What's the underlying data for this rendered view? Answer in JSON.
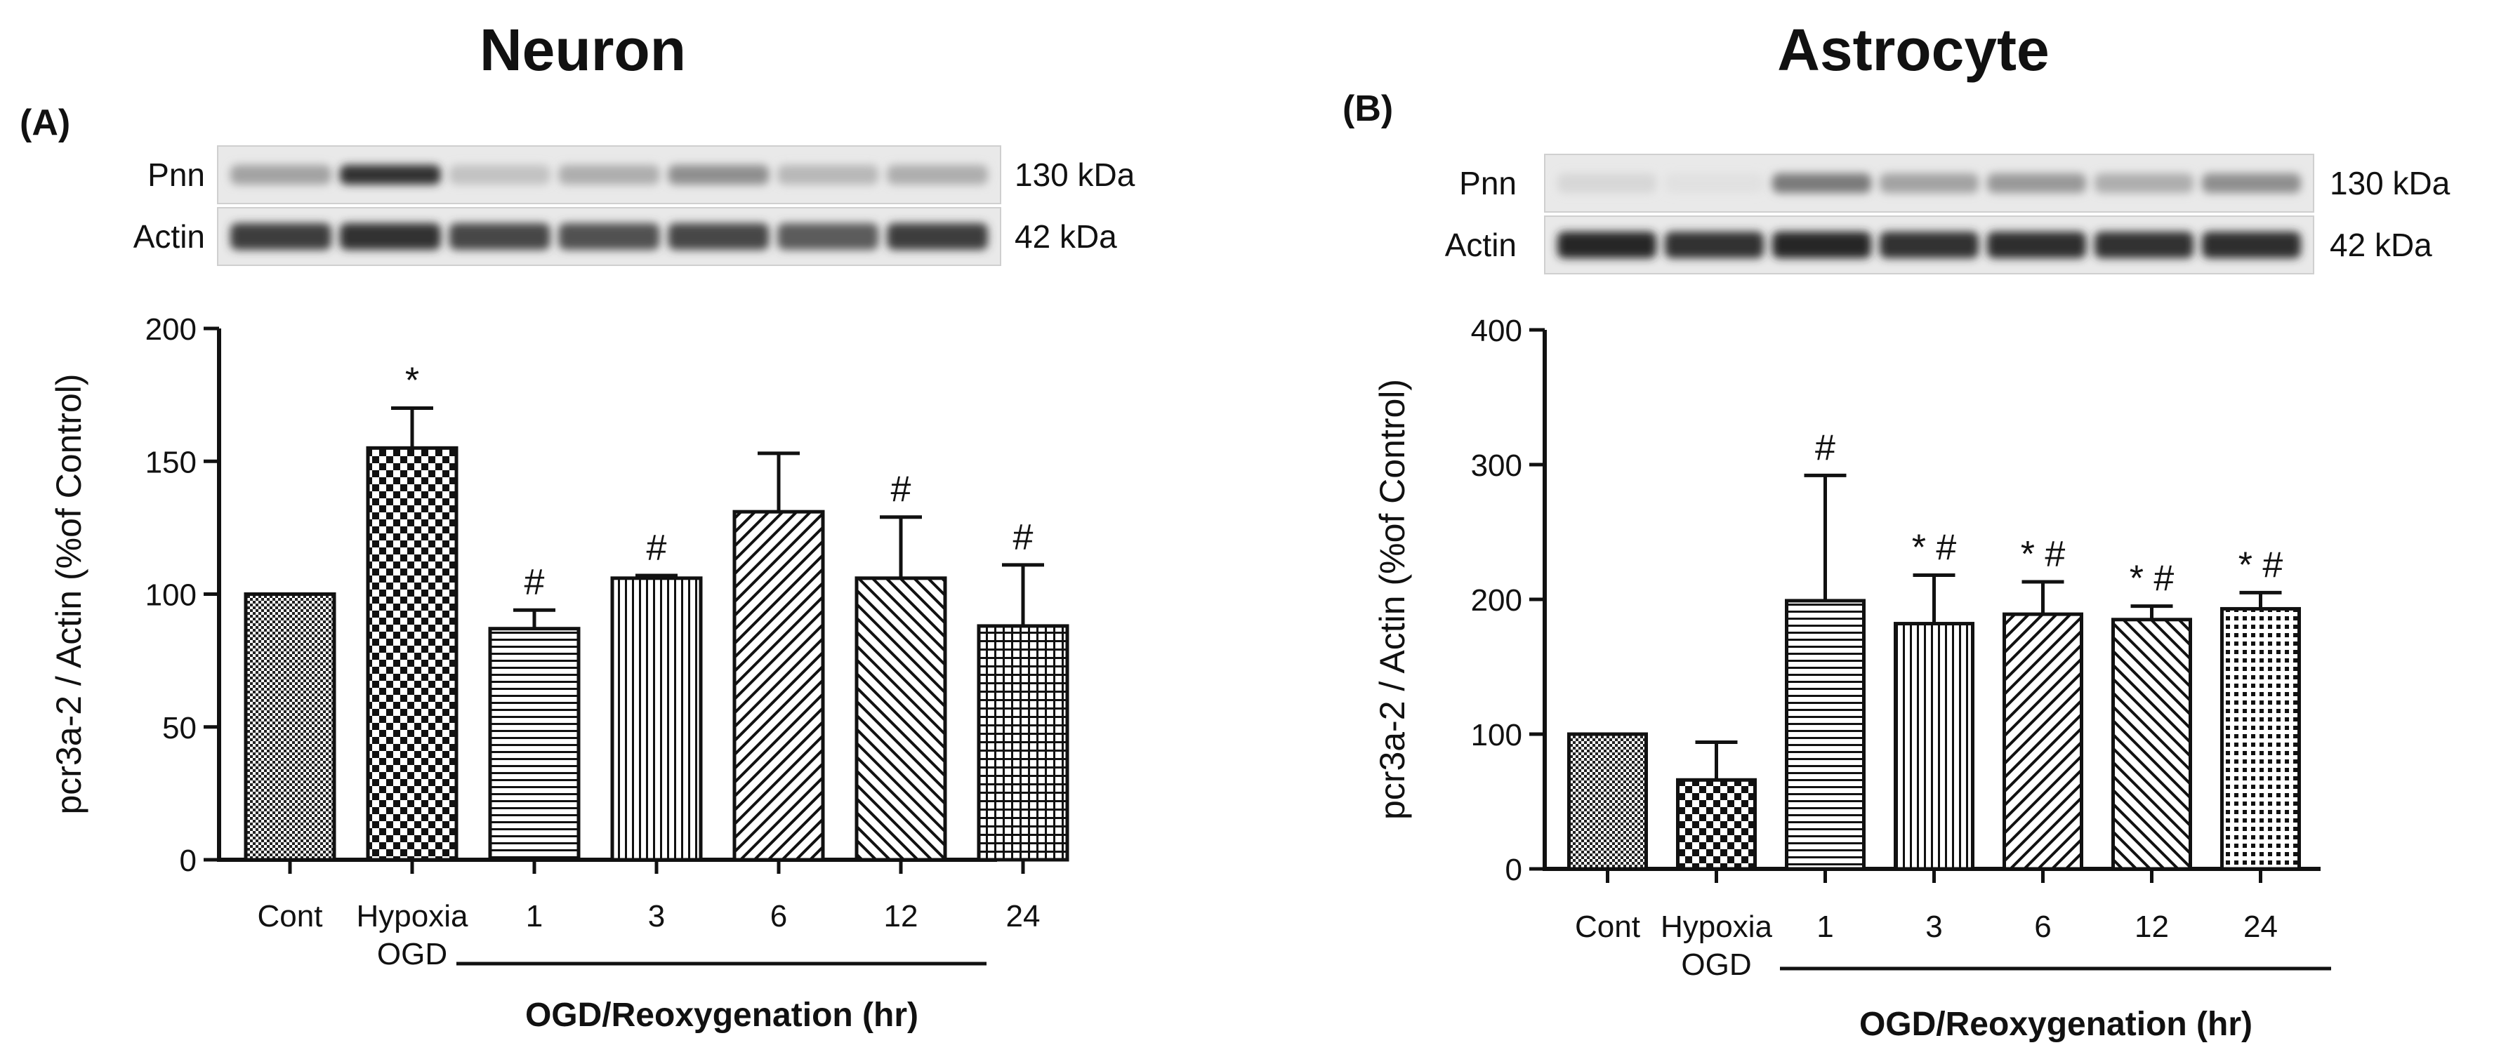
{
  "panels": [
    {
      "id": "A",
      "title": "Neuron",
      "panel_label": "(A)",
      "blot": {
        "rows": [
          {
            "label": "Pnn",
            "size": "130 kDa",
            "intensities": [
              0.35,
              0.9,
              0.2,
              0.3,
              0.45,
              0.25,
              0.3
            ]
          },
          {
            "label": "Actin",
            "size": "42 kDa",
            "intensities": [
              0.85,
              0.9,
              0.8,
              0.75,
              0.8,
              0.7,
              0.85
            ]
          }
        ]
      },
      "xgroup_label": "OGD/Reoxygenation (hr)"
    },
    {
      "id": "B",
      "title": "Astrocyte",
      "panel_label": "(B)",
      "blot": {
        "rows": [
          {
            "label": "Pnn",
            "size": "130 kDa",
            "intensities": [
              0.1,
              0.05,
              0.55,
              0.35,
              0.4,
              0.3,
              0.45
            ]
          },
          {
            "label": "Actin",
            "size": "42 kDa",
            "intensities": [
              0.95,
              0.9,
              0.95,
              0.9,
              0.92,
              0.9,
              0.92
            ]
          }
        ]
      },
      "xgroup_label": "OGD/Reoxygenation (hr)"
    }
  ],
  "chart_data": [
    {
      "type": "bar",
      "title": "Neuron",
      "categories": [
        "Cont",
        "Hypoxia\nOGD",
        "1",
        "3",
        "6",
        "12",
        "24"
      ],
      "values": [
        100,
        155,
        87,
        106,
        131,
        106,
        88
      ],
      "errors": [
        0,
        15,
        7,
        1,
        22,
        23,
        23
      ],
      "annotations": [
        "",
        "*",
        "#",
        "#",
        "",
        "#",
        "#"
      ],
      "patterns": [
        "fine-check",
        "check",
        "hlines",
        "vlines",
        "diag-right",
        "diag-left",
        "grid"
      ],
      "xlabel": "OGD/Reoxygenation (hr)",
      "ylabel": "pcr3a-2 / Actin (%of Control)",
      "ylim": [
        0,
        200
      ],
      "yticks": [
        0,
        50,
        100,
        150,
        200
      ]
    },
    {
      "type": "bar",
      "title": "Astrocyte",
      "categories": [
        "Cont",
        "Hypoxia\nOGD",
        "1",
        "3",
        "6",
        "12",
        "24"
      ],
      "values": [
        100,
        66,
        199,
        182,
        189,
        185,
        193
      ],
      "errors": [
        0,
        28,
        93,
        36,
        24,
        10,
        12
      ],
      "annotations": [
        "",
        "",
        "#",
        "* #",
        "* #",
        "* #",
        "* #"
      ],
      "patterns": [
        "fine-check",
        "check",
        "hlines",
        "vlines",
        "diag-right",
        "diag-left",
        "dots"
      ],
      "xlabel": "OGD/Reoxygenation (hr)",
      "ylabel": "pcr3a-2 / Actin (%of Control)",
      "ylim": [
        0,
        400
      ],
      "yticks": [
        0,
        100,
        200,
        300,
        400
      ]
    }
  ]
}
